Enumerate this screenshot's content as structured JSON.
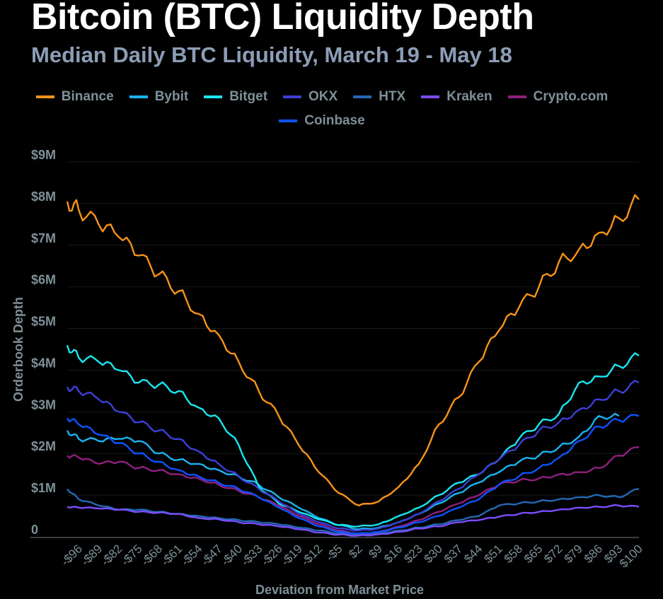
{
  "header": {
    "title": "Bitcoin (BTC) Liquidity Depth",
    "subtitle": "Median Daily BTC Liquidity, March 19 - May 18"
  },
  "chart_data": {
    "type": "line",
    "title": "Bitcoin (BTC) Liquidity Depth",
    "subtitle": "Median Daily BTC Liquidity, March 19 - May 18",
    "xlabel": "Deviation from Market Price",
    "ylabel": "Orderbook Depth",
    "ylim": [
      0,
      9000000
    ],
    "xlim": [
      -100,
      100
    ],
    "grid": true,
    "legend_position": "top-center",
    "yticks": [
      {
        "value": 0,
        "label": "0"
      },
      {
        "value": 1000000,
        "label": "$1M"
      },
      {
        "value": 2000000,
        "label": "$2M"
      },
      {
        "value": 3000000,
        "label": "$3M"
      },
      {
        "value": 4000000,
        "label": "$4M"
      },
      {
        "value": 5000000,
        "label": "$5M"
      },
      {
        "value": 6000000,
        "label": "$6M"
      },
      {
        "value": 7000000,
        "label": "$7M"
      },
      {
        "value": 8000000,
        "label": "$8M"
      },
      {
        "value": 9000000,
        "label": "$9M"
      }
    ],
    "xticks": [
      {
        "value": -96,
        "label": "-$96"
      },
      {
        "value": -89,
        "label": "-$89"
      },
      {
        "value": -82,
        "label": "-$82"
      },
      {
        "value": -75,
        "label": "-$75"
      },
      {
        "value": -68,
        "label": "-$68"
      },
      {
        "value": -61,
        "label": "-$61"
      },
      {
        "value": -54,
        "label": "-$54"
      },
      {
        "value": -47,
        "label": "-$47"
      },
      {
        "value": -40,
        "label": "-$40"
      },
      {
        "value": -33,
        "label": "-$33"
      },
      {
        "value": -26,
        "label": "-$26"
      },
      {
        "value": -19,
        "label": "-$19"
      },
      {
        "value": -12,
        "label": "-$12"
      },
      {
        "value": -5,
        "label": "-$5"
      },
      {
        "value": 2,
        "label": "$2"
      },
      {
        "value": 9,
        "label": "$9"
      },
      {
        "value": 16,
        "label": "$16"
      },
      {
        "value": 23,
        "label": "$23"
      },
      {
        "value": 30,
        "label": "$30"
      },
      {
        "value": 37,
        "label": "$37"
      },
      {
        "value": 44,
        "label": "$44"
      },
      {
        "value": 51,
        "label": "$51"
      },
      {
        "value": 58,
        "label": "$58"
      },
      {
        "value": 65,
        "label": "$65"
      },
      {
        "value": 72,
        "label": "$72"
      },
      {
        "value": 79,
        "label": "$79"
      },
      {
        "value": 86,
        "label": "$86"
      },
      {
        "value": 93,
        "label": "$93"
      },
      {
        "value": 100,
        "label": "$100"
      }
    ],
    "x": [
      -100,
      -96,
      -89,
      -82,
      -75,
      -68,
      -61,
      -54,
      -47,
      -40,
      -33,
      -26,
      -19,
      -12,
      -5,
      2,
      9,
      16,
      23,
      30,
      37,
      44,
      51,
      58,
      65,
      72,
      79,
      86,
      93,
      100
    ],
    "series": [
      {
        "name": "Binance",
        "color": "#f7931a",
        "values": [
          8.05,
          7.85,
          7.5,
          7.2,
          6.75,
          6.3,
          5.9,
          5.35,
          4.85,
          4.2,
          3.5,
          2.9,
          2.2,
          1.55,
          1.05,
          0.75,
          0.85,
          1.2,
          1.75,
          2.7,
          3.35,
          4.2,
          4.95,
          5.5,
          6.0,
          6.6,
          6.9,
          7.3,
          7.65,
          8.1
        ]
      },
      {
        "name": "Bybit",
        "color": "#1ab3f0",
        "values": [
          2.55,
          2.35,
          2.3,
          2.35,
          2.3,
          2.0,
          1.85,
          1.75,
          1.6,
          1.45,
          1.25,
          0.95,
          0.7,
          0.45,
          0.28,
          0.18,
          0.22,
          0.35,
          0.55,
          0.8,
          1.05,
          1.3,
          1.55,
          1.8,
          1.95,
          2.15,
          2.4,
          2.9,
          2.9,
          null
        ]
      },
      {
        "name": "Bitget",
        "color": "#1ae6f0",
        "values": [
          4.6,
          4.3,
          4.2,
          4.0,
          3.7,
          3.65,
          3.5,
          3.1,
          2.85,
          2.2,
          1.2,
          0.8,
          0.6,
          0.42,
          0.28,
          0.25,
          0.3,
          0.5,
          0.7,
          1.0,
          1.3,
          1.5,
          1.85,
          2.35,
          2.7,
          2.95,
          3.7,
          3.85,
          4.1,
          4.35
        ]
      },
      {
        "name": "OKX",
        "color": "#3d3fd6",
        "values": [
          3.6,
          3.5,
          3.3,
          3.0,
          2.75,
          2.55,
          2.35,
          2.05,
          1.75,
          1.45,
          1.15,
          0.85,
          0.55,
          0.35,
          0.2,
          0.15,
          0.2,
          0.35,
          0.55,
          0.85,
          1.15,
          1.5,
          1.85,
          2.2,
          2.55,
          2.75,
          3.05,
          3.3,
          3.5,
          3.7
        ]
      },
      {
        "name": "HTX",
        "color": "#2468b4",
        "values": [
          1.15,
          0.9,
          0.75,
          0.65,
          0.65,
          0.6,
          0.55,
          0.5,
          0.45,
          0.4,
          0.35,
          0.3,
          0.22,
          0.15,
          0.08,
          0.05,
          0.08,
          0.15,
          0.22,
          0.3,
          0.4,
          0.5,
          0.75,
          0.8,
          0.85,
          0.9,
          0.95,
          1.0,
          0.95,
          1.15
        ]
      },
      {
        "name": "Kraken",
        "color": "#7b4dff",
        "values": [
          0.72,
          0.7,
          0.68,
          0.65,
          0.6,
          0.58,
          0.55,
          0.45,
          0.42,
          0.35,
          0.3,
          0.25,
          0.18,
          0.1,
          0.05,
          0.03,
          0.06,
          0.12,
          0.2,
          0.25,
          0.35,
          0.4,
          0.48,
          0.55,
          0.6,
          0.65,
          0.7,
          0.72,
          0.75,
          0.72
        ]
      },
      {
        "name": "Crypto.com",
        "color": "#8f1f7e",
        "values": [
          1.95,
          1.9,
          1.75,
          1.8,
          1.65,
          1.6,
          1.5,
          1.4,
          1.25,
          1.1,
          0.95,
          0.75,
          0.5,
          0.3,
          0.15,
          0.08,
          0.12,
          0.25,
          0.4,
          0.6,
          0.8,
          1.0,
          1.25,
          1.35,
          1.4,
          1.5,
          1.55,
          1.65,
          1.95,
          2.15
        ]
      },
      {
        "name": "Coinbase",
        "color": "#0f52ff",
        "values": [
          2.85,
          2.7,
          2.45,
          2.25,
          2.0,
          1.8,
          1.6,
          1.45,
          1.3,
          1.15,
          0.95,
          0.7,
          0.45,
          0.25,
          0.12,
          0.08,
          0.12,
          0.22,
          0.35,
          0.5,
          0.7,
          0.9,
          1.25,
          1.45,
          1.65,
          1.9,
          2.3,
          2.65,
          2.8,
          2.9
        ]
      }
    ],
    "values_unit": "USD millions"
  }
}
